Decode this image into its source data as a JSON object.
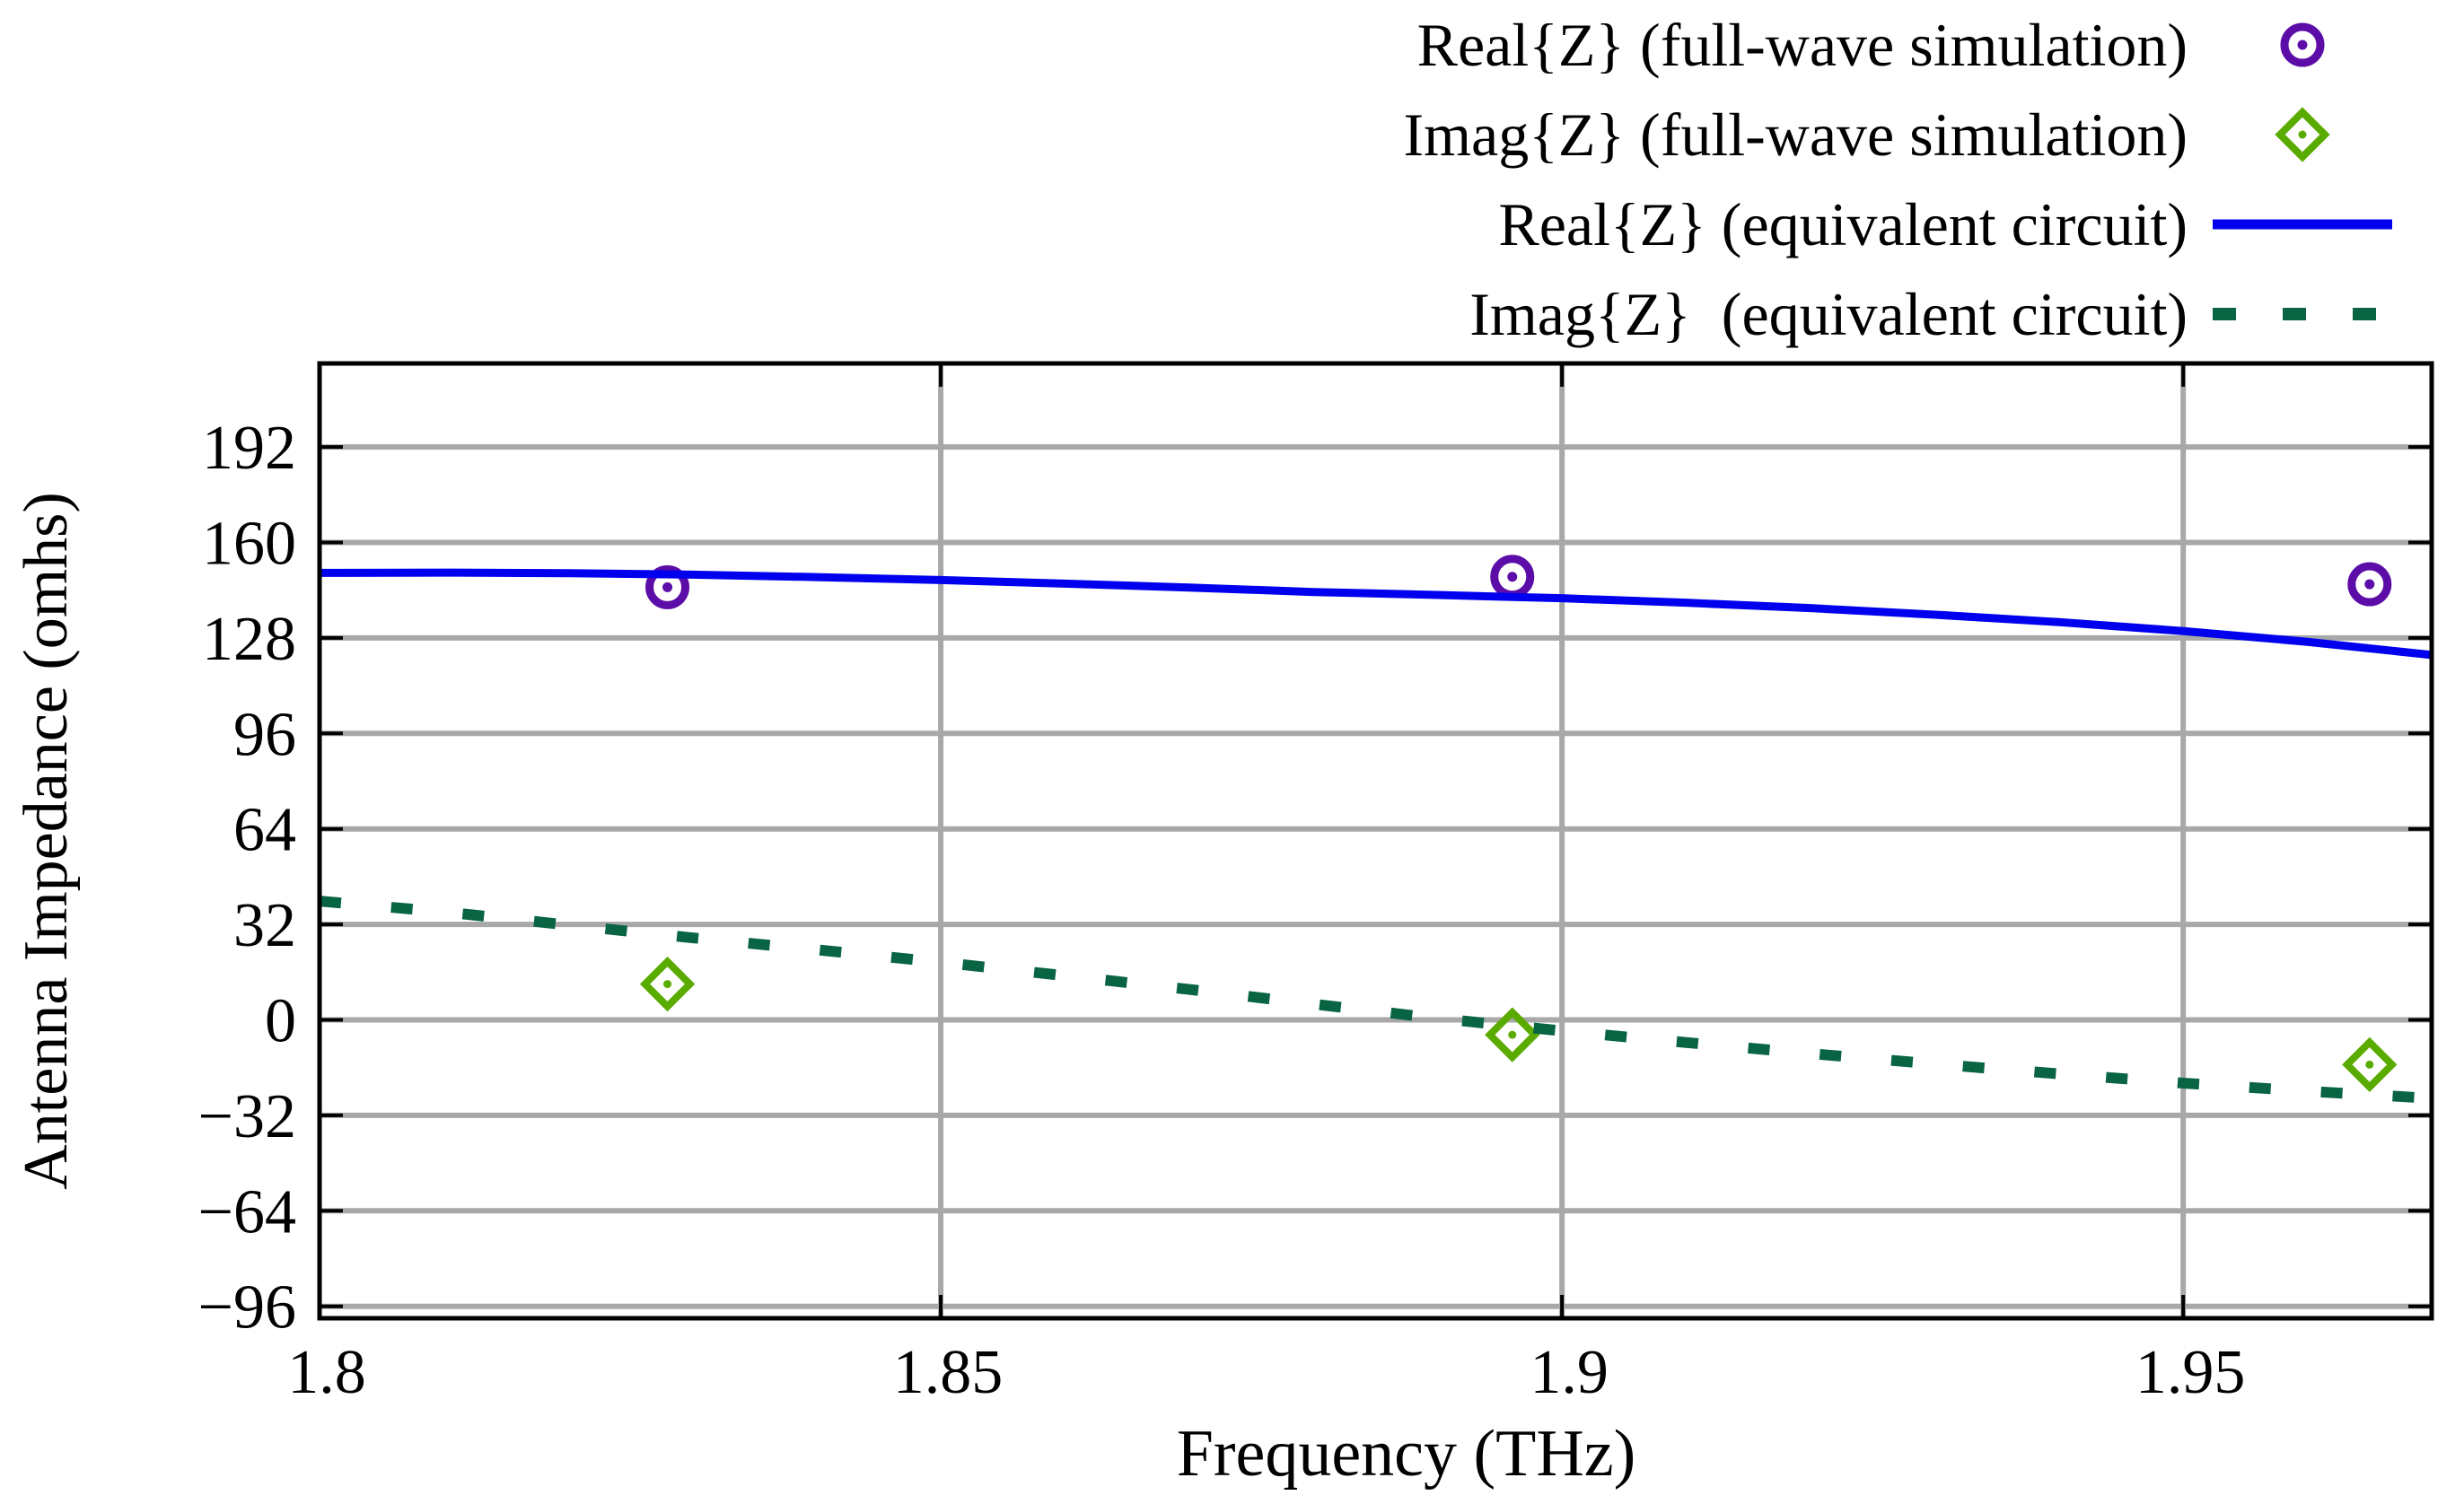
{
  "figure": {
    "background": "#ffffff",
    "axis_color": "#000000",
    "grid_color": "#a8a8a8"
  },
  "legend": {
    "position": "top-right",
    "entries": [
      {
        "label": "Real{Z} (full-wave simulation)",
        "marker": "circle-dot",
        "color": "#5c0da8"
      },
      {
        "label": "Imag{Z} (full-wave simulation)",
        "marker": "diamond-dot",
        "color": "#5aab00"
      },
      {
        "label": "Real{Z} (equivalent circuit)",
        "marker": "solid-line",
        "color": "#0000ee"
      },
      {
        "label": "Imag{Z}  (equivalent circuit)",
        "marker": "dashed-line",
        "color": "#086442"
      }
    ]
  },
  "chart_data": {
    "type": "line",
    "title": "",
    "xlabel": "Frequency (THz)",
    "ylabel": "Antenna Impedance (omhs)",
    "xlim": [
      1.8,
      1.97
    ],
    "ylim": [
      -100,
      220
    ],
    "grid": true,
    "legend_position": "top-right",
    "x_ticks": {
      "values": [
        1.8,
        1.85,
        1.9,
        1.95
      ],
      "labels": [
        "1.8",
        "1.85",
        "1.9",
        "1.95"
      ]
    },
    "y_ticks": {
      "values": [
        192,
        160,
        128,
        96,
        64,
        32,
        0,
        -32,
        -64,
        -96
      ],
      "labels": [
        "192",
        "160",
        "128",
        "96",
        "64",
        "32",
        "0",
        "−32",
        "−64",
        "−96"
      ]
    },
    "series": [
      {
        "name": "Real{Z} (full-wave simulation)",
        "kind": "scatter",
        "marker": "circle-dot",
        "color": "#5c0da8",
        "points": [
          [
            1.828,
            145
          ],
          [
            1.896,
            148.5
          ],
          [
            1.965,
            146
          ]
        ]
      },
      {
        "name": "Imag{Z} (full-wave simulation)",
        "kind": "scatter",
        "marker": "diamond-dot",
        "color": "#5aab00",
        "points": [
          [
            1.828,
            12
          ],
          [
            1.896,
            -5
          ],
          [
            1.965,
            -15
          ]
        ]
      },
      {
        "name": "Real{Z} (equivalent circuit)",
        "kind": "line",
        "style": "solid",
        "color": "#0000ee",
        "points": [
          [
            1.8,
            149.8
          ],
          [
            1.81,
            149.9
          ],
          [
            1.82,
            149.7
          ],
          [
            1.83,
            149.2
          ],
          [
            1.84,
            148.4
          ],
          [
            1.85,
            147.4
          ],
          [
            1.86,
            146.2
          ],
          [
            1.87,
            144.9
          ],
          [
            1.88,
            143.4
          ],
          [
            1.89,
            142.4
          ],
          [
            1.9,
            141.3
          ],
          [
            1.91,
            139.8
          ],
          [
            1.92,
            138.0
          ],
          [
            1.93,
            135.8
          ],
          [
            1.94,
            133.3
          ],
          [
            1.95,
            130.3
          ],
          [
            1.96,
            126.7
          ],
          [
            1.97,
            122.3
          ]
        ]
      },
      {
        "name": "Imag{Z}  (equivalent circuit)",
        "kind": "line",
        "style": "dashed",
        "color": "#086442",
        "points": [
          [
            1.8,
            39.8
          ],
          [
            1.81,
            36.2
          ],
          [
            1.82,
            31.8
          ],
          [
            1.83,
            27.5
          ],
          [
            1.84,
            23.5
          ],
          [
            1.85,
            19.3
          ],
          [
            1.86,
            14.8
          ],
          [
            1.87,
            10.2
          ],
          [
            1.88,
            5.3
          ],
          [
            1.89,
            0.5
          ],
          [
            1.9,
            -3.7
          ],
          [
            1.91,
            -7.6
          ],
          [
            1.92,
            -11.3
          ],
          [
            1.93,
            -14.8
          ],
          [
            1.94,
            -18.1
          ],
          [
            1.95,
            -21.2
          ],
          [
            1.96,
            -23.9
          ],
          [
            1.97,
            -26.3
          ]
        ]
      }
    ]
  }
}
